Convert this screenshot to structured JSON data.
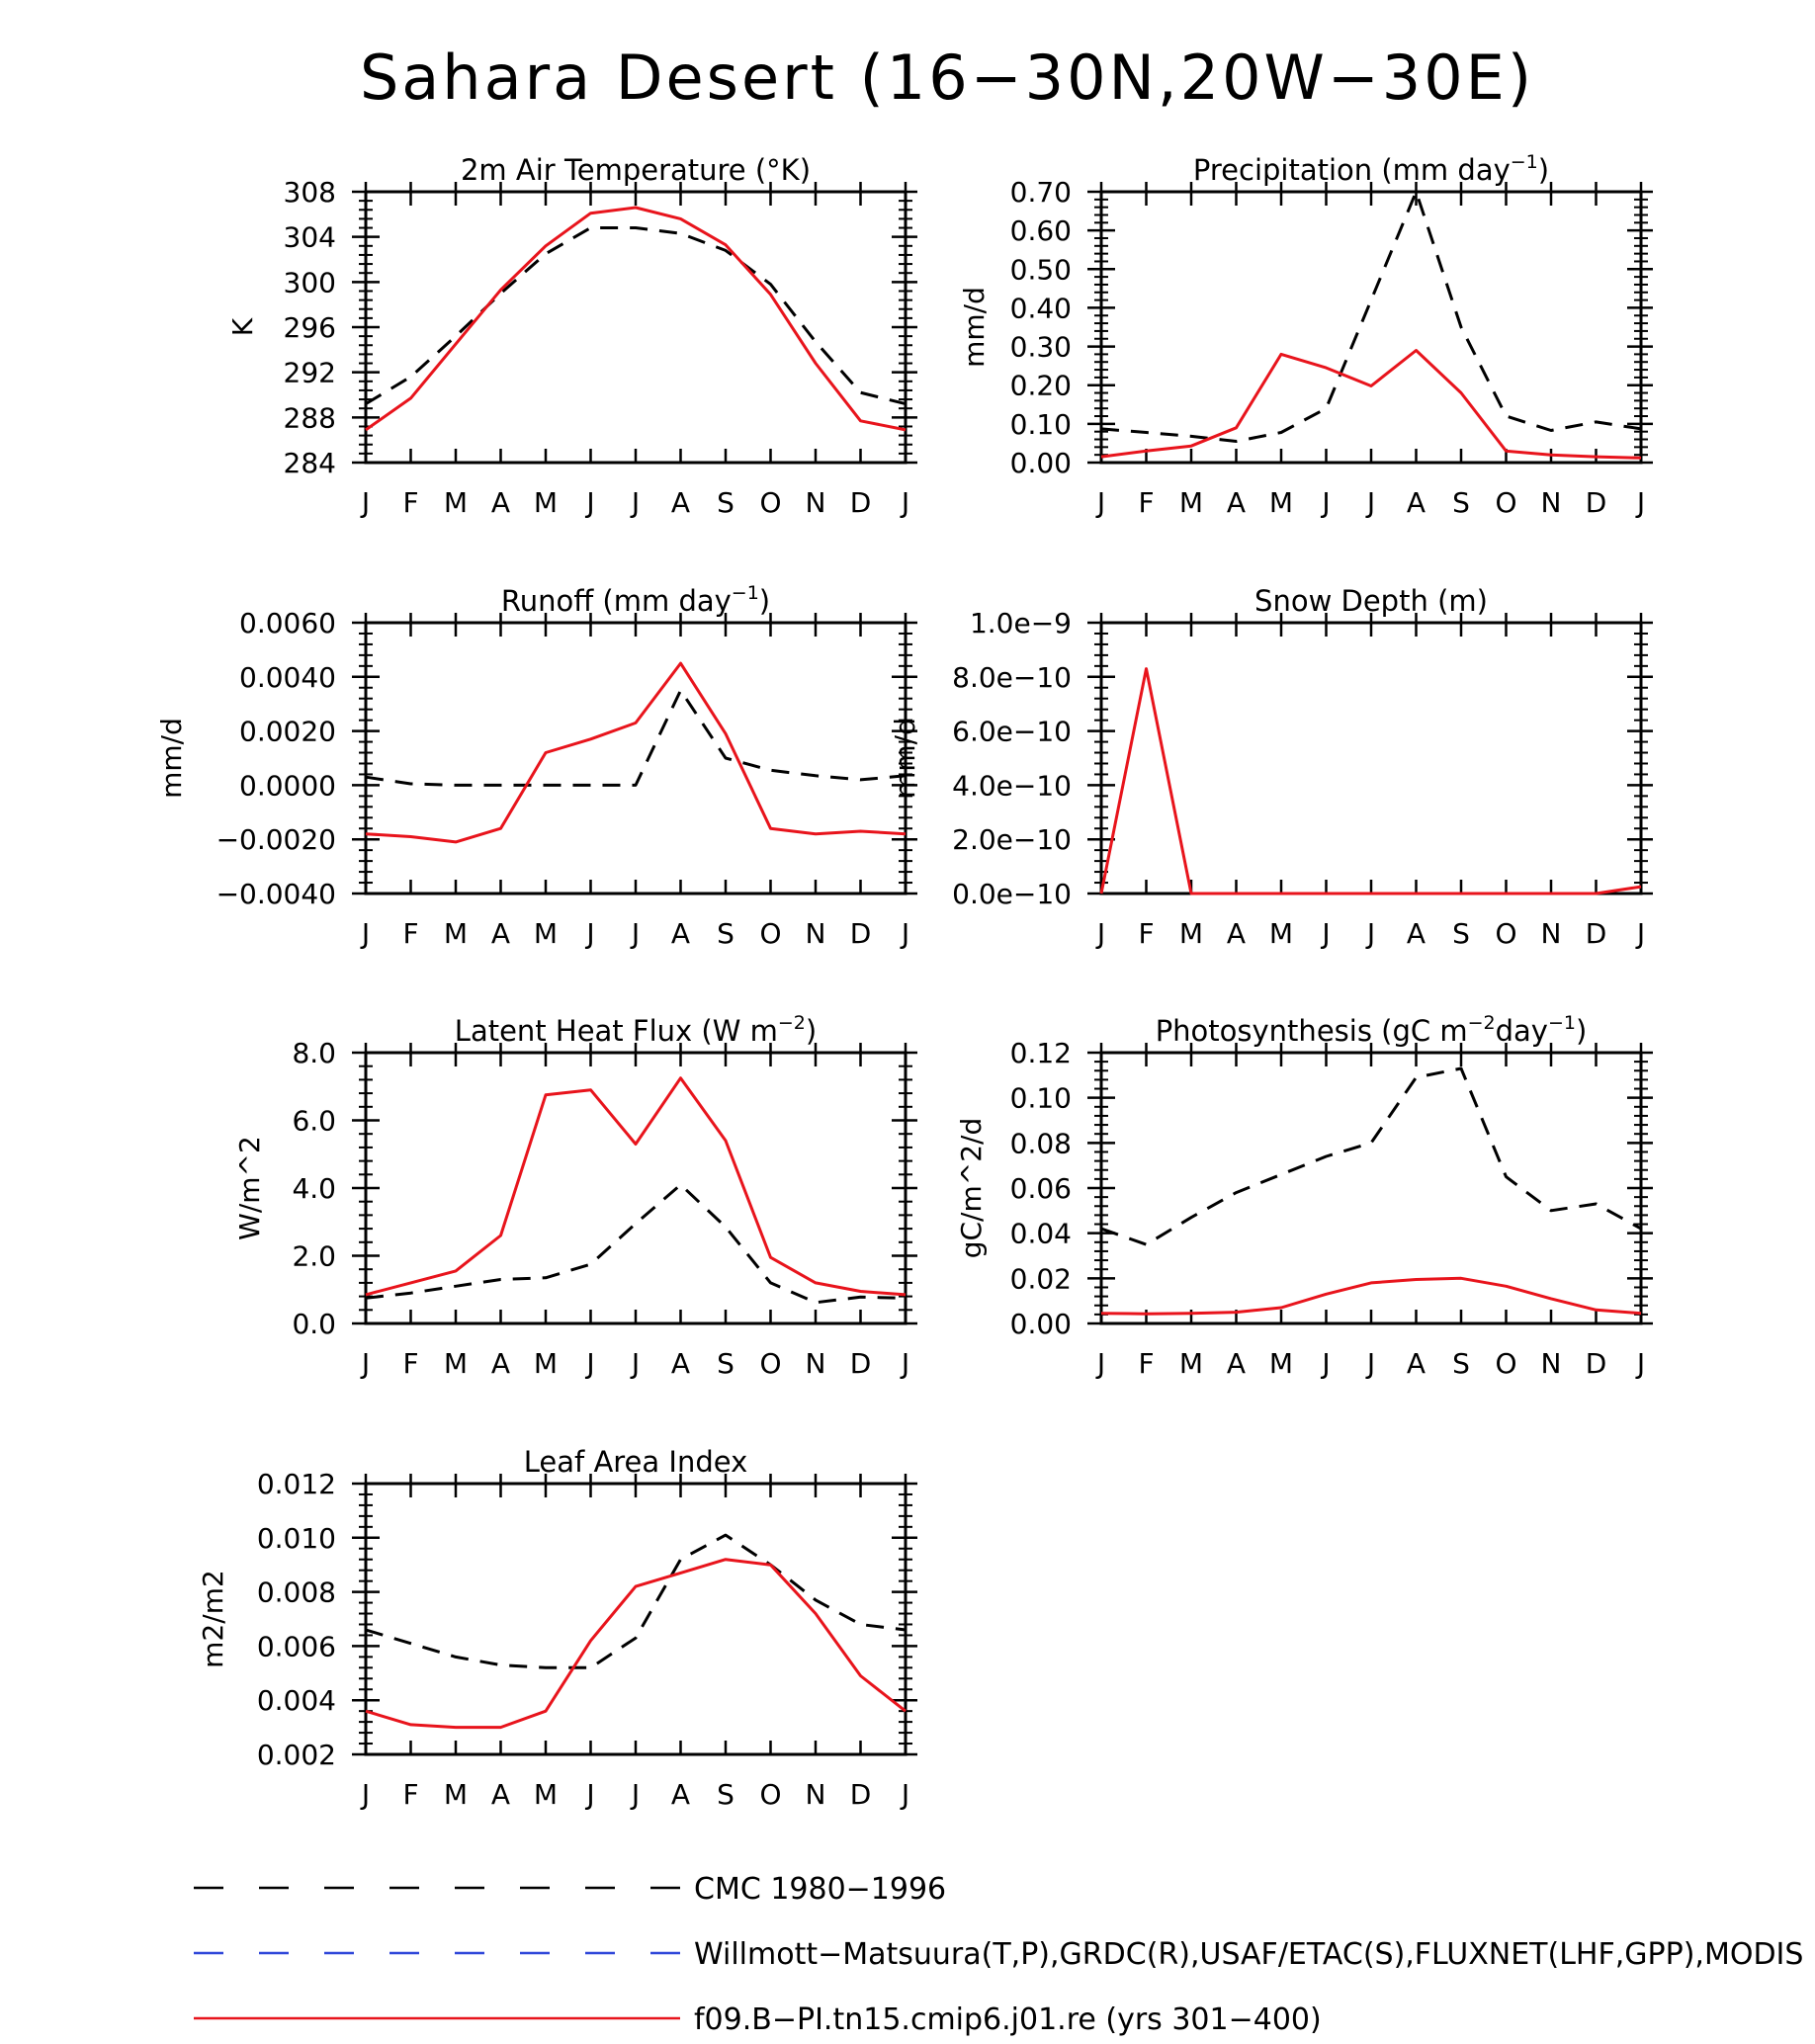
{
  "figure": {
    "title": "Sahara Desert (16−30N,20W−30E)"
  },
  "colors": {
    "obs": "#000000",
    "model": "#e8141c",
    "blue": "#2f47d9"
  },
  "legend": [
    {
      "label": "CMC 1980−1996",
      "color": "#000000",
      "style": "dashed"
    },
    {
      "label": "Willmott−Matsuura(T,P),GRDC(R),USAF/ETAC(S),FLUXNET(LHF,GPP),MODIS",
      "color": "#2f47d9",
      "style": "dashed"
    },
    {
      "label": "f09.B−PI.tn15.cmip6.j01.re (yrs 301−400)",
      "color": "#e8141c",
      "style": "solid"
    }
  ],
  "chart_data": [
    {
      "type": "line",
      "title": "2m Air Temperature (°K)",
      "title_parts": [
        "2m Air Temperature (°K)"
      ],
      "ylabel": "K",
      "categories": [
        "J",
        "F",
        "M",
        "A",
        "M",
        "J",
        "J",
        "A",
        "S",
        "O",
        "N",
        "D",
        "J"
      ],
      "ylim": [
        284,
        308
      ],
      "yticks": [
        "308",
        "304",
        "300",
        "296",
        "292",
        "288",
        "284"
      ],
      "series": [
        {
          "name": "CMC 1980−1996",
          "values": [
            289.2,
            291.6,
            295.2,
            299.0,
            302.5,
            304.8,
            304.8,
            304.3,
            302.8,
            299.8,
            294.7,
            290.2,
            289.2
          ]
        },
        {
          "name": "f09.B−PI.tn15.cmip6.j01.re (yrs 301−400)",
          "values": [
            286.9,
            289.7,
            294.5,
            299.3,
            303.2,
            306.1,
            306.6,
            305.6,
            303.3,
            298.9,
            292.8,
            287.7,
            286.9
          ]
        }
      ]
    },
    {
      "type": "line",
      "title": "Precipitation (mm day⁻¹)",
      "title_parts": [
        "Precipitation (mm day",
        "−1",
        ")"
      ],
      "ylabel": "mm/d",
      "categories": [
        "J",
        "F",
        "M",
        "A",
        "M",
        "J",
        "J",
        "A",
        "S",
        "O",
        "N",
        "D",
        "J"
      ],
      "ylim": [
        0.0,
        0.7
      ],
      "yticks": [
        "0.70",
        "0.60",
        "0.50",
        "0.40",
        "0.30",
        "0.20",
        "0.10",
        "0.00"
      ],
      "series": [
        {
          "name": "CMC 1980−1996",
          "values": [
            0.087,
            0.078,
            0.068,
            0.055,
            0.078,
            0.14,
            0.42,
            0.7,
            0.35,
            0.12,
            0.083,
            0.105,
            0.087
          ]
        },
        {
          "name": "f09.B−PI.tn15.cmip6.j01.re (yrs 301−400)",
          "values": [
            0.015,
            0.03,
            0.043,
            0.09,
            0.28,
            0.245,
            0.198,
            0.29,
            0.18,
            0.03,
            0.02,
            0.015,
            0.012
          ]
        }
      ]
    },
    {
      "type": "line",
      "title": "Runoff (mm day⁻¹)",
      "title_parts": [
        "Runoff (mm day",
        "−1",
        ")"
      ],
      "ylabel": "mm/d",
      "categories": [
        "J",
        "F",
        "M",
        "A",
        "M",
        "J",
        "J",
        "A",
        "S",
        "O",
        "N",
        "D",
        "J"
      ],
      "ylim": [
        -0.004,
        0.006
      ],
      "yticks": [
        "0.0060",
        "0.0040",
        "0.0020",
        "0.0000",
        "−0.0020",
        "−0.0040"
      ],
      "series": [
        {
          "name": "CMC 1980−1996",
          "values": [
            0.0003,
            5e-05,
            0.0,
            0.0,
            0.0,
            0.0,
            0.0,
            0.0035,
            0.001,
            0.00055,
            0.00035,
            0.0002,
            0.00035
          ]
        },
        {
          "name": "f09.B−PI.tn15.cmip6.j01.re (yrs 301−400)",
          "values": [
            -0.0018,
            -0.0019,
            -0.0021,
            -0.0016,
            0.0012,
            0.0017,
            0.0023,
            0.0045,
            0.0019,
            -0.0016,
            -0.0018,
            -0.0017,
            -0.0018
          ]
        }
      ]
    },
    {
      "type": "line",
      "title": "Snow Depth (m)",
      "title_parts": [
        "Snow Depth (m)"
      ],
      "ylabel": "mm/d",
      "categories": [
        "J",
        "F",
        "M",
        "A",
        "M",
        "J",
        "J",
        "A",
        "S",
        "O",
        "N",
        "D",
        "J"
      ],
      "ylim": [
        0.0,
        1e-09
      ],
      "yticks": [
        "1.0e−9",
        "8.0e−10",
        "6.0e−10",
        "4.0e−10",
        "2.0e−10",
        "0.0e−10"
      ],
      "series": [
        {
          "name": "CMC 1980−1996",
          "values": [
            0,
            0,
            0,
            0,
            0,
            0,
            0,
            0,
            0,
            0,
            0,
            0,
            0
          ]
        },
        {
          "name": "f09.B−PI.tn15.cmip6.j01.re (yrs 301−400)",
          "values": [
            0,
            8.3e-10,
            0,
            0,
            0,
            0,
            0,
            0,
            0,
            0,
            0,
            0,
            2.5e-11
          ]
        }
      ]
    },
    {
      "type": "line",
      "title": "Latent Heat Flux (W m⁻²)",
      "title_parts": [
        "Latent Heat Flux (W m",
        "−2",
        ")"
      ],
      "ylabel": "W/m^2",
      "categories": [
        "J",
        "F",
        "M",
        "A",
        "M",
        "J",
        "J",
        "A",
        "S",
        "O",
        "N",
        "D",
        "J"
      ],
      "ylim": [
        0.0,
        8.0
      ],
      "yticks": [
        "8.0",
        "6.0",
        "4.0",
        "2.0",
        "0.0"
      ],
      "series": [
        {
          "name": "CMC 1980−1996",
          "values": [
            0.75,
            0.9,
            1.1,
            1.3,
            1.35,
            1.75,
            2.95,
            4.1,
            2.85,
            1.2,
            0.62,
            0.78,
            0.75
          ]
        },
        {
          "name": "f09.B−PI.tn15.cmip6.j01.re (yrs 301−400)",
          "values": [
            0.85,
            1.2,
            1.55,
            2.6,
            6.75,
            6.9,
            5.3,
            7.25,
            5.4,
            1.95,
            1.2,
            0.95,
            0.85
          ]
        }
      ]
    },
    {
      "type": "line",
      "title": "Photosynthesis (gC m⁻²day⁻¹)",
      "title_parts": [
        "Photosynthesis (gC m",
        "−2",
        "day",
        "−1",
        ")"
      ],
      "ylabel": "gC/m^2/d",
      "categories": [
        "J",
        "F",
        "M",
        "A",
        "M",
        "J",
        "J",
        "A",
        "S",
        "O",
        "N",
        "D",
        "J"
      ],
      "ylim": [
        0.0,
        0.12
      ],
      "yticks": [
        "0.12",
        "0.10",
        "0.08",
        "0.06",
        "0.04",
        "0.02",
        "0.00"
      ],
      "series": [
        {
          "name": "CMC 1980−1996",
          "values": [
            0.042,
            0.035,
            0.047,
            0.058,
            0.066,
            0.074,
            0.08,
            0.109,
            0.113,
            0.065,
            0.05,
            0.053,
            0.042
          ]
        },
        {
          "name": "f09.B−PI.tn15.cmip6.j01.re (yrs 301−400)",
          "values": [
            0.0045,
            0.0043,
            0.0045,
            0.005,
            0.007,
            0.013,
            0.018,
            0.0195,
            0.02,
            0.0165,
            0.011,
            0.006,
            0.0045
          ]
        }
      ]
    },
    {
      "type": "line",
      "title": "Leaf Area Index",
      "title_parts": [
        "Leaf Area Index"
      ],
      "ylabel": "m2/m2",
      "categories": [
        "J",
        "F",
        "M",
        "A",
        "M",
        "J",
        "J",
        "A",
        "S",
        "O",
        "N",
        "D",
        "J"
      ],
      "ylim": [
        0.002,
        0.012
      ],
      "yticks": [
        "0.012",
        "0.010",
        "0.008",
        "0.006",
        "0.004",
        "0.002"
      ],
      "series": [
        {
          "name": "CMC 1980−1996",
          "values": [
            0.0066,
            0.0061,
            0.0056,
            0.0053,
            0.0052,
            0.0052,
            0.0063,
            0.0092,
            0.0101,
            0.009,
            0.0077,
            0.0068,
            0.0066
          ]
        },
        {
          "name": "f09.B−PI.tn15.cmip6.j01.re (yrs 301−400)",
          "values": [
            0.0036,
            0.0031,
            0.003,
            0.003,
            0.0036,
            0.0062,
            0.0082,
            0.0087,
            0.0092,
            0.009,
            0.0072,
            0.0049,
            0.0036
          ]
        }
      ]
    }
  ]
}
